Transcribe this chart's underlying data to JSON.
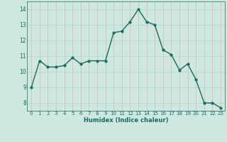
{
  "x": [
    0,
    1,
    2,
    3,
    4,
    5,
    6,
    7,
    8,
    9,
    10,
    11,
    12,
    13,
    14,
    15,
    16,
    17,
    18,
    19,
    20,
    21,
    22,
    23
  ],
  "y": [
    9.0,
    10.7,
    10.3,
    10.3,
    10.4,
    10.9,
    10.5,
    10.7,
    10.7,
    10.7,
    12.5,
    12.6,
    13.2,
    14.0,
    13.2,
    13.0,
    11.4,
    11.1,
    10.1,
    10.5,
    9.5,
    8.0,
    8.0,
    7.7
  ],
  "title": "",
  "xlabel": "Humidex (Indice chaleur)",
  "ylabel": "",
  "xlim": [
    -0.5,
    23.5
  ],
  "ylim": [
    7.5,
    14.5
  ],
  "yticks": [
    8,
    9,
    10,
    11,
    12,
    13,
    14
  ],
  "xticks": [
    0,
    1,
    2,
    3,
    4,
    5,
    6,
    7,
    8,
    9,
    10,
    11,
    12,
    13,
    14,
    15,
    16,
    17,
    18,
    19,
    20,
    21,
    22,
    23
  ],
  "line_color": "#1a6b5a",
  "marker_color": "#1a6b5a",
  "bg_color": "#cce8e0",
  "vgrid_color": "#e8b4b4",
  "hgrid_color": "#b8d8d0"
}
